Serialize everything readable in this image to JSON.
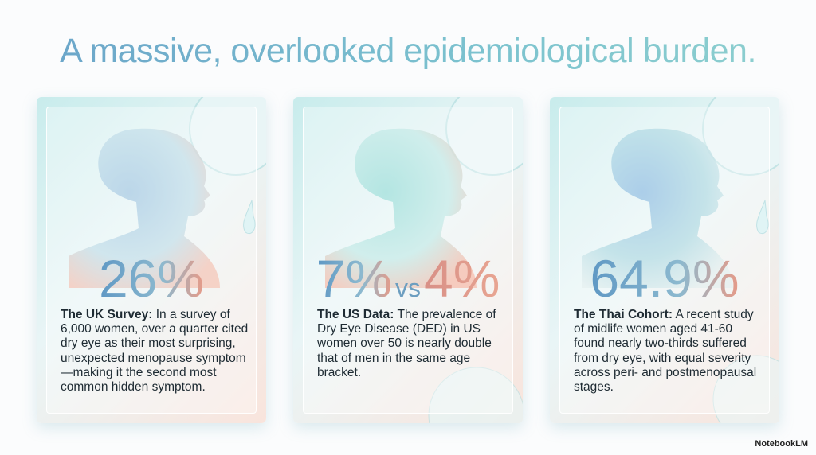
{
  "title": "A massive, overlooked epidemiological burden.",
  "cards": [
    {
      "stat": [
        "26%"
      ],
      "label": "The UK Survey:",
      "text": "In a survey of 6,000 women, over a quarter cited dry eye as their most surprising, unexpected menopause symptom—making it the second most common hidden symptom."
    },
    {
      "stat": [
        "7%",
        "vs",
        "4%"
      ],
      "label": "The US Data:",
      "text": "The prevalence of Dry Eye Disease (DED) in US women over 50 is nearly double that of men in the same age bracket."
    },
    {
      "stat": [
        "64.9%"
      ],
      "label": "The Thai Cohort:",
      "text": "A recent study of midlife women aged 41-60 found nearly two-thirds suffered from dry eye, with equal severity across peri- and postmenopausal stages."
    }
  ],
  "brand": "NotebookLM"
}
